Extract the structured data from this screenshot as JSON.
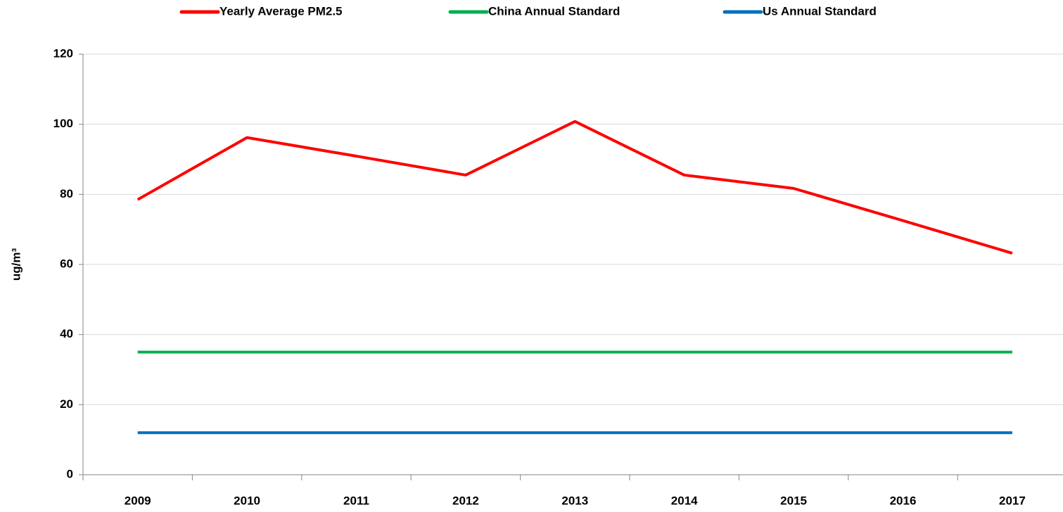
{
  "chart_data": {
    "type": "line",
    "y_label": "ug/m³",
    "categories": [
      "2009",
      "2010",
      "2011",
      "2012",
      "2013",
      "2014",
      "2015",
      "2016",
      "2017"
    ],
    "series": [
      {
        "name": "Yearly Average PM2.5",
        "color": "#ff0000",
        "values": [
          78.5,
          96.2,
          90.9,
          85.5,
          100.8,
          85.5,
          81.7,
          72.5,
          63.2
        ]
      },
      {
        "name": "China Annual Standard",
        "color": "#00b050",
        "values": [
          35,
          35,
          35,
          35,
          35,
          35,
          35,
          35,
          35
        ]
      },
      {
        "name": "Us Annual Standard",
        "color": "#0070c0",
        "values": [
          12,
          12,
          12,
          12,
          12,
          12,
          12,
          12,
          12
        ]
      }
    ],
    "ylim": [
      0,
      120
    ],
    "yticks": [
      0,
      20,
      40,
      60,
      80,
      100,
      120
    ],
    "grid": true,
    "legend": "top"
  }
}
